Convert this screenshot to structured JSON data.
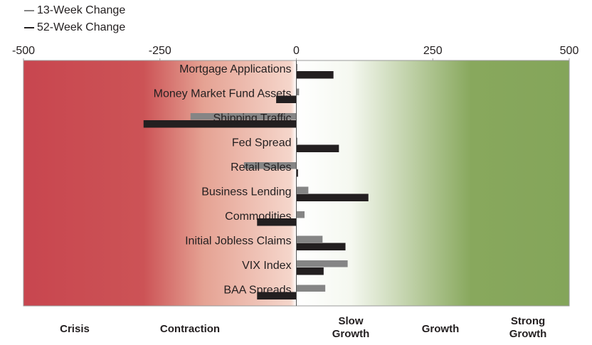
{
  "chart_data": {
    "type": "hbar",
    "categories": [
      "Mortgage Applications",
      "Money Market Fund Assets",
      "Shipping Traffic",
      "Fed Spread",
      "Retail Sales",
      "Business Lending",
      "Commodities",
      "Initial Jobless Claims",
      "VIX Index",
      "BAA Spreads"
    ],
    "series": [
      {
        "name": "13-Week Change",
        "color": "#858585",
        "values": [
          2,
          5,
          -194,
          2,
          -96,
          22,
          15,
          48,
          94,
          53
        ]
      },
      {
        "name": "52-Week Change",
        "color": "#231f20",
        "values": [
          68,
          -37,
          -280,
          78,
          3,
          132,
          -72,
          90,
          50,
          -72
        ]
      }
    ],
    "xlim": [
      -500,
      500
    ],
    "xticks": [
      -500,
      -250,
      0,
      250,
      500
    ],
    "zones": [
      [
        "Crisis"
      ],
      [
        "Contraction"
      ],
      [
        "Slow",
        "Growth"
      ],
      [
        "Growth"
      ],
      [
        "Strong",
        "Growth"
      ]
    ]
  }
}
